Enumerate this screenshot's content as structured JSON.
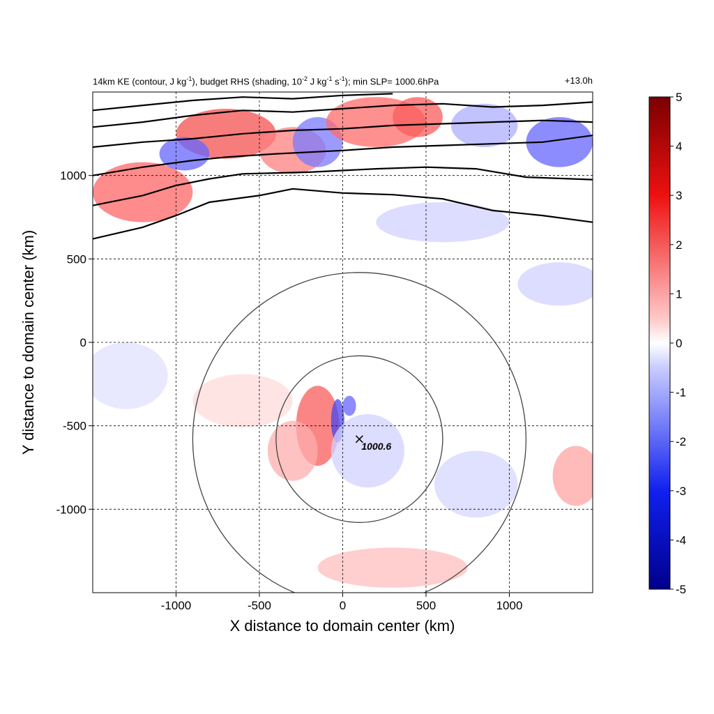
{
  "chart_data": {
    "type": "heatmap",
    "title": {
      "prefix": "14km KE (contour, J kg",
      "sup1": "-1",
      "mid1": "), budget RHS (shading, 10",
      "sup2": "-2",
      "mid2": " J kg",
      "sup3": "-1",
      "mid3": " s",
      "sup4": "-1",
      "suffix": "); min SLP= 1000.6hPa"
    },
    "time_label": "+13.0h",
    "xlabel": "X distance to domain center (km)",
    "ylabel": "Y distance to domain center (km)",
    "xlim": [
      -1500,
      1500
    ],
    "ylim": [
      -1500,
      1500
    ],
    "xticks": [
      -1000,
      -500,
      0,
      500,
      1000
    ],
    "yticks": [
      1000,
      500,
      0,
      -500,
      -1000
    ],
    "grid": true,
    "colorbar": {
      "range": [
        -5,
        5
      ],
      "ticks": [
        5,
        4,
        3,
        2,
        1,
        0,
        -1,
        -2,
        -3,
        -4,
        -5
      ],
      "colors": {
        "neg_max": "#00008b",
        "neg_mid": "#2f3cff",
        "zero": "#ffffff",
        "pos_mid": "#ff3030",
        "pos_max": "#7a0000"
      }
    },
    "storm_center": {
      "x": 100,
      "y": -580,
      "label": "1000.6"
    },
    "range_rings_km": [
      500,
      1000
    ],
    "ke_contours": [
      [
        [
          -1500,
          620
        ],
        [
          -1200,
          690
        ],
        [
          -1000,
          760
        ],
        [
          -800,
          840
        ],
        [
          -500,
          880
        ],
        [
          -300,
          920
        ],
        [
          0,
          895
        ],
        [
          300,
          885
        ],
        [
          600,
          860
        ],
        [
          900,
          790
        ],
        [
          1200,
          760
        ],
        [
          1500,
          720
        ]
      ],
      [
        [
          -1500,
          820
        ],
        [
          -1200,
          880
        ],
        [
          -1000,
          940
        ],
        [
          -800,
          980
        ],
        [
          -600,
          1010
        ],
        [
          -200,
          1020
        ],
        [
          200,
          1040
        ],
        [
          500,
          1050
        ],
        [
          800,
          1040
        ],
        [
          1100,
          990
        ],
        [
          1500,
          975
        ]
      ],
      [
        [
          -1500,
          1000
        ],
        [
          -1200,
          1050
        ],
        [
          -900,
          1090
        ],
        [
          -700,
          1110
        ],
        [
          -400,
          1130
        ],
        [
          0,
          1150
        ],
        [
          300,
          1170
        ],
        [
          600,
          1180
        ],
        [
          900,
          1190
        ],
        [
          1200,
          1200
        ],
        [
          1500,
          1240
        ]
      ],
      [
        [
          -1500,
          1170
        ],
        [
          -1200,
          1200
        ],
        [
          -900,
          1220
        ],
        [
          -600,
          1250
        ],
        [
          -300,
          1270
        ],
        [
          0,
          1280
        ],
        [
          300,
          1300
        ],
        [
          600,
          1310
        ],
        [
          900,
          1320
        ],
        [
          1200,
          1330
        ],
        [
          1500,
          1320
        ]
      ],
      [
        [
          -1500,
          1290
        ],
        [
          -1200,
          1320
        ],
        [
          -900,
          1360
        ],
        [
          -600,
          1390
        ],
        [
          -300,
          1380
        ],
        [
          0,
          1400
        ],
        [
          300,
          1420
        ],
        [
          600,
          1430
        ],
        [
          900,
          1410
        ],
        [
          1200,
          1420
        ],
        [
          1500,
          1440
        ]
      ],
      [
        [
          -1500,
          1390
        ],
        [
          -1200,
          1420
        ],
        [
          -900,
          1450
        ],
        [
          -600,
          1470
        ],
        [
          -300,
          1460
        ],
        [
          0,
          1480
        ],
        [
          300,
          1490
        ]
      ]
    ],
    "shading_features": [
      {
        "x": -150,
        "y": -500,
        "value": 3.2,
        "sx": 130,
        "sy": 240
      },
      {
        "x": -30,
        "y": -470,
        "value": -3.6,
        "sx": 40,
        "sy": 130
      },
      {
        "x": 40,
        "y": -380,
        "value": -3.0,
        "sx": 40,
        "sy": 60
      },
      {
        "x": -300,
        "y": -650,
        "value": 1.6,
        "sx": 150,
        "sy": 180
      },
      {
        "x": 150,
        "y": -650,
        "value": -0.9,
        "sx": 220,
        "sy": 220
      },
      {
        "x": -600,
        "y": -350,
        "value": 0.7,
        "sx": 300,
        "sy": 160
      },
      {
        "x": 300,
        "y": -1350,
        "value": 1.3,
        "sx": 450,
        "sy": 120
      },
      {
        "x": 1400,
        "y": -800,
        "value": 1.8,
        "sx": 140,
        "sy": 180
      },
      {
        "x": 800,
        "y": -850,
        "value": -0.8,
        "sx": 250,
        "sy": 200
      },
      {
        "x": 1300,
        "y": 350,
        "value": -0.9,
        "sx": 250,
        "sy": 130
      },
      {
        "x": 600,
        "y": 720,
        "value": -0.9,
        "sx": 400,
        "sy": 120
      },
      {
        "x": -1200,
        "y": 900,
        "value": 3.0,
        "sx": 300,
        "sy": 180
      },
      {
        "x": -700,
        "y": 1250,
        "value": 3.4,
        "sx": 300,
        "sy": 150
      },
      {
        "x": -950,
        "y": 1130,
        "value": -3.0,
        "sx": 150,
        "sy": 100
      },
      {
        "x": -300,
        "y": 1150,
        "value": 2.5,
        "sx": 200,
        "sy": 140
      },
      {
        "x": -150,
        "y": 1200,
        "value": -2.6,
        "sx": 150,
        "sy": 150
      },
      {
        "x": 200,
        "y": 1320,
        "value": 2.9,
        "sx": 300,
        "sy": 150
      },
      {
        "x": 450,
        "y": 1350,
        "value": 3.2,
        "sx": 150,
        "sy": 120
      },
      {
        "x": 1300,
        "y": 1200,
        "value": -3.0,
        "sx": 200,
        "sy": 150
      },
      {
        "x": 850,
        "y": 1300,
        "value": -1.6,
        "sx": 200,
        "sy": 130
      },
      {
        "x": -1300,
        "y": -200,
        "value": -0.6,
        "sx": 250,
        "sy": 200
      }
    ]
  }
}
